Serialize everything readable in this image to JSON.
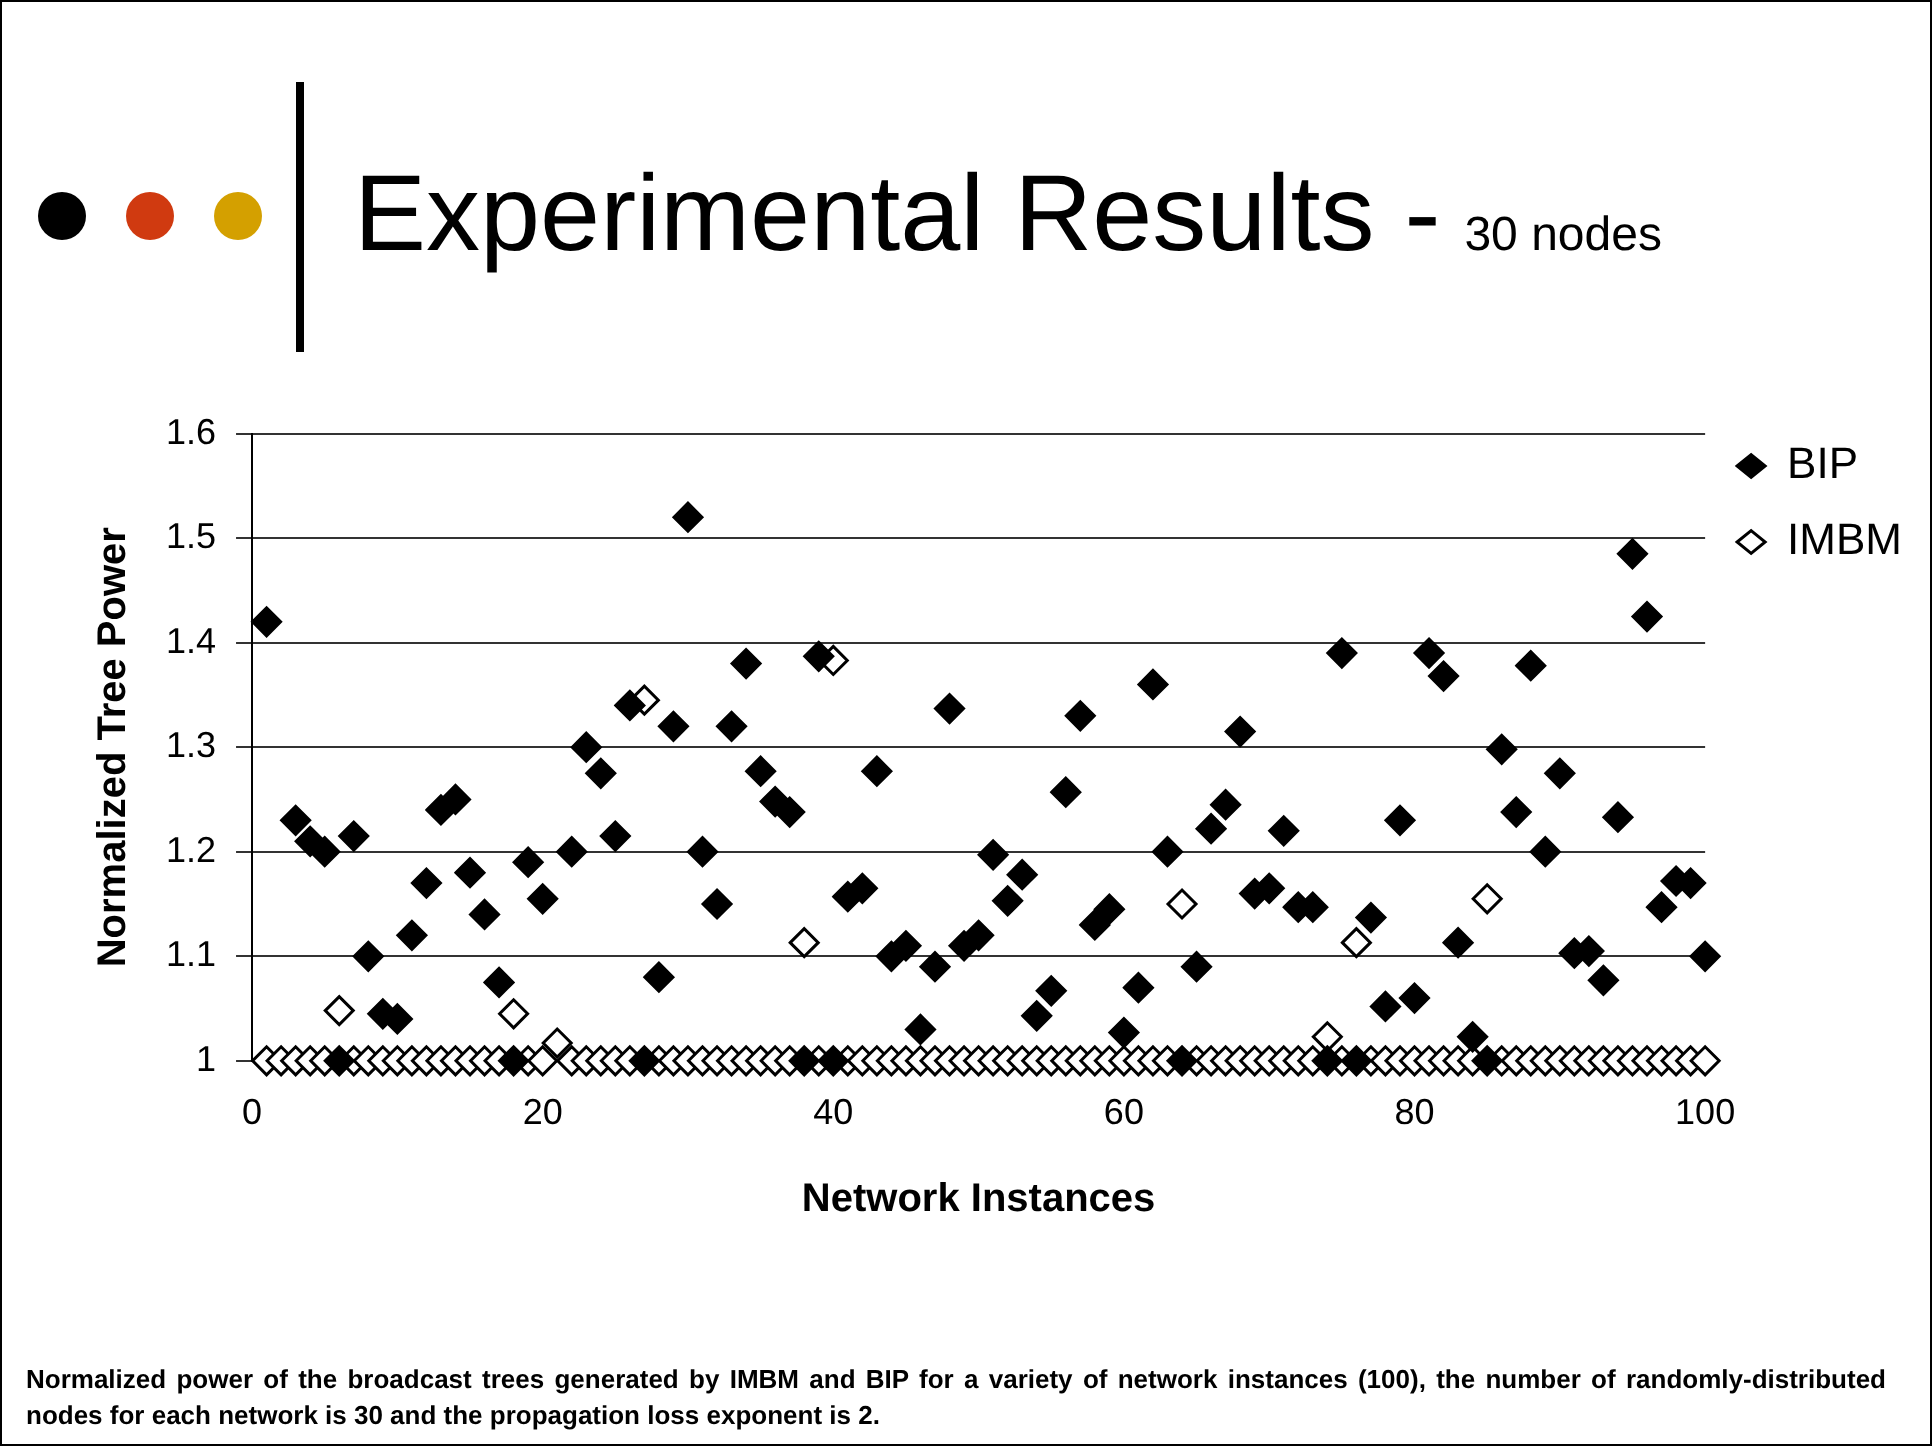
{
  "chart_data": {
    "type": "scatter",
    "title": "Experimental Results -",
    "subtitle": "30 nodes",
    "xlabel": "Network Instances",
    "ylabel": "Normalized Tree Power",
    "annotations": [
      "Normalized power of the broadcast trees generated by IMBM and BIP for a variety of network instances (100), the number of randomly-distributed nodes for each network is 30 and the propagation loss exponent  is 2."
    ],
    "x": [
      1,
      2,
      3,
      4,
      5,
      6,
      7,
      8,
      9,
      10,
      11,
      12,
      13,
      14,
      15,
      16,
      17,
      18,
      19,
      20,
      21,
      22,
      23,
      24,
      25,
      26,
      27,
      28,
      29,
      30,
      31,
      32,
      33,
      34,
      35,
      36,
      37,
      38,
      39,
      40,
      41,
      42,
      43,
      44,
      45,
      46,
      47,
      48,
      49,
      50,
      51,
      52,
      53,
      54,
      55,
      56,
      57,
      58,
      59,
      60,
      61,
      62,
      63,
      64,
      65,
      66,
      67,
      68,
      69,
      70,
      71,
      72,
      73,
      74,
      75,
      76,
      77,
      78,
      79,
      80,
      81,
      82,
      83,
      84,
      85,
      86,
      87,
      88,
      89,
      90,
      91,
      92,
      93,
      94,
      95,
      96,
      97,
      98,
      99,
      100
    ],
    "series": [
      {
        "name": "BIP",
        "color": "#000000",
        "values": [
          1.42,
          null,
          1.23,
          1.21,
          1.2,
          1.0,
          1.215,
          1.1,
          1.045,
          1.04,
          1.12,
          1.17,
          1.24,
          1.25,
          1.18,
          1.14,
          1.075,
          1.0,
          1.19,
          1.155,
          null,
          1.2,
          1.3,
          1.275,
          1.215,
          1.34,
          1.0,
          1.08,
          1.32,
          1.52,
          1.2,
          1.15,
          1.32,
          1.38,
          1.277,
          1.248,
          1.238,
          1.0,
          1.387,
          1.0,
          1.157,
          1.165,
          1.277,
          1.1,
          1.11,
          1.03,
          1.09,
          1.337,
          1.11,
          1.12,
          1.197,
          1.153,
          1.178,
          1.043,
          1.067,
          1.257,
          1.33,
          1.13,
          1.145,
          1.027,
          1.07,
          1.36,
          1.2,
          1.0,
          1.09,
          1.222,
          1.245,
          1.315,
          1.16,
          1.165,
          1.22,
          1.147,
          1.147,
          1.0,
          1.39,
          1.0,
          1.137,
          1.052,
          1.23,
          1.06,
          1.39,
          1.368,
          1.113,
          1.023,
          1.0,
          1.298,
          1.238,
          1.378,
          1.2,
          1.275,
          1.103,
          1.105,
          1.077,
          1.233,
          1.485,
          1.425,
          1.147,
          1.172,
          1.17,
          1.1
        ]
      },
      {
        "name": "IMBM",
        "color": "#ffffff",
        "values": [
          1,
          1,
          1,
          1,
          1,
          1.048,
          1,
          1,
          1,
          1,
          1,
          1,
          1,
          1,
          1,
          1,
          1,
          1.045,
          1,
          1,
          1.017,
          1,
          1,
          1,
          1,
          1,
          1.345,
          1,
          1,
          1,
          1,
          1,
          1,
          1,
          1,
          1,
          1,
          1.113,
          1,
          1.383,
          1,
          1,
          1,
          1,
          1,
          1,
          1,
          1,
          1,
          1,
          1,
          1,
          1,
          1,
          1,
          1,
          1,
          1,
          1,
          1,
          1,
          1,
          1,
          1.15,
          1,
          1,
          1,
          1,
          1,
          1,
          1,
          1,
          1,
          1.023,
          1,
          1.113,
          1,
          1,
          1,
          1,
          1,
          1,
          1,
          1,
          1.155,
          1,
          1,
          1,
          1,
          1,
          1,
          1,
          1,
          1,
          1,
          1,
          1,
          1,
          1,
          1
        ]
      }
    ],
    "xlim": [
      0,
      100
    ],
    "xticks": [
      0,
      20,
      40,
      60,
      80,
      100
    ],
    "ylim": [
      1,
      1.6
    ],
    "yticks": [
      1,
      1.1,
      1.2,
      1.3,
      1.4,
      1.5,
      1.6
    ],
    "grid": "y",
    "legend": "top right",
    "marker": "diamond"
  }
}
